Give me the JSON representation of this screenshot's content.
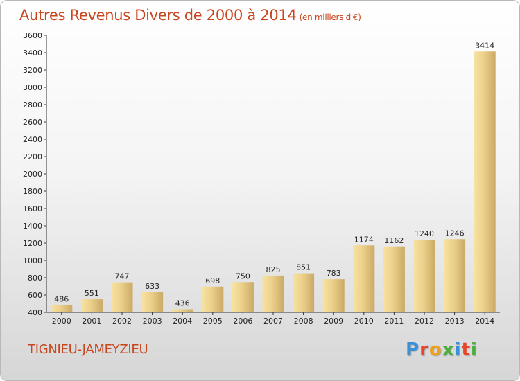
{
  "header": {
    "title": "Autres Revenus Divers de 2000 à 2014",
    "unit": "(en milliers d'€)"
  },
  "location": "TIGNIEU-JAMEYZIEU",
  "logo": {
    "text": "Proxiti",
    "colors": [
      "#3a8fd9",
      "#e8442a",
      "#f0a020",
      "#4cae3c",
      "#3a8fd9",
      "#e8442a",
      "#4cae3c"
    ]
  },
  "colors": {
    "title": "#c8461e",
    "bar_light": "#f7e3a2",
    "bar_dark": "#c9aa66"
  },
  "chart_data": {
    "type": "bar",
    "categories": [
      "2000",
      "2001",
      "2002",
      "2003",
      "2004",
      "2005",
      "2006",
      "2007",
      "2008",
      "2009",
      "2010",
      "2011",
      "2012",
      "2013",
      "2014"
    ],
    "values": [
      486,
      551,
      747,
      633,
      436,
      698,
      750,
      825,
      851,
      783,
      1174,
      1162,
      1240,
      1246,
      3414
    ],
    "ylim": [
      400,
      3600
    ],
    "yticks": [
      400,
      600,
      800,
      1000,
      1200,
      1400,
      1600,
      1800,
      2000,
      2200,
      2400,
      2600,
      2800,
      3000,
      3200,
      3400,
      3600
    ],
    "grid": false,
    "xlabel": "",
    "ylabel": ""
  }
}
